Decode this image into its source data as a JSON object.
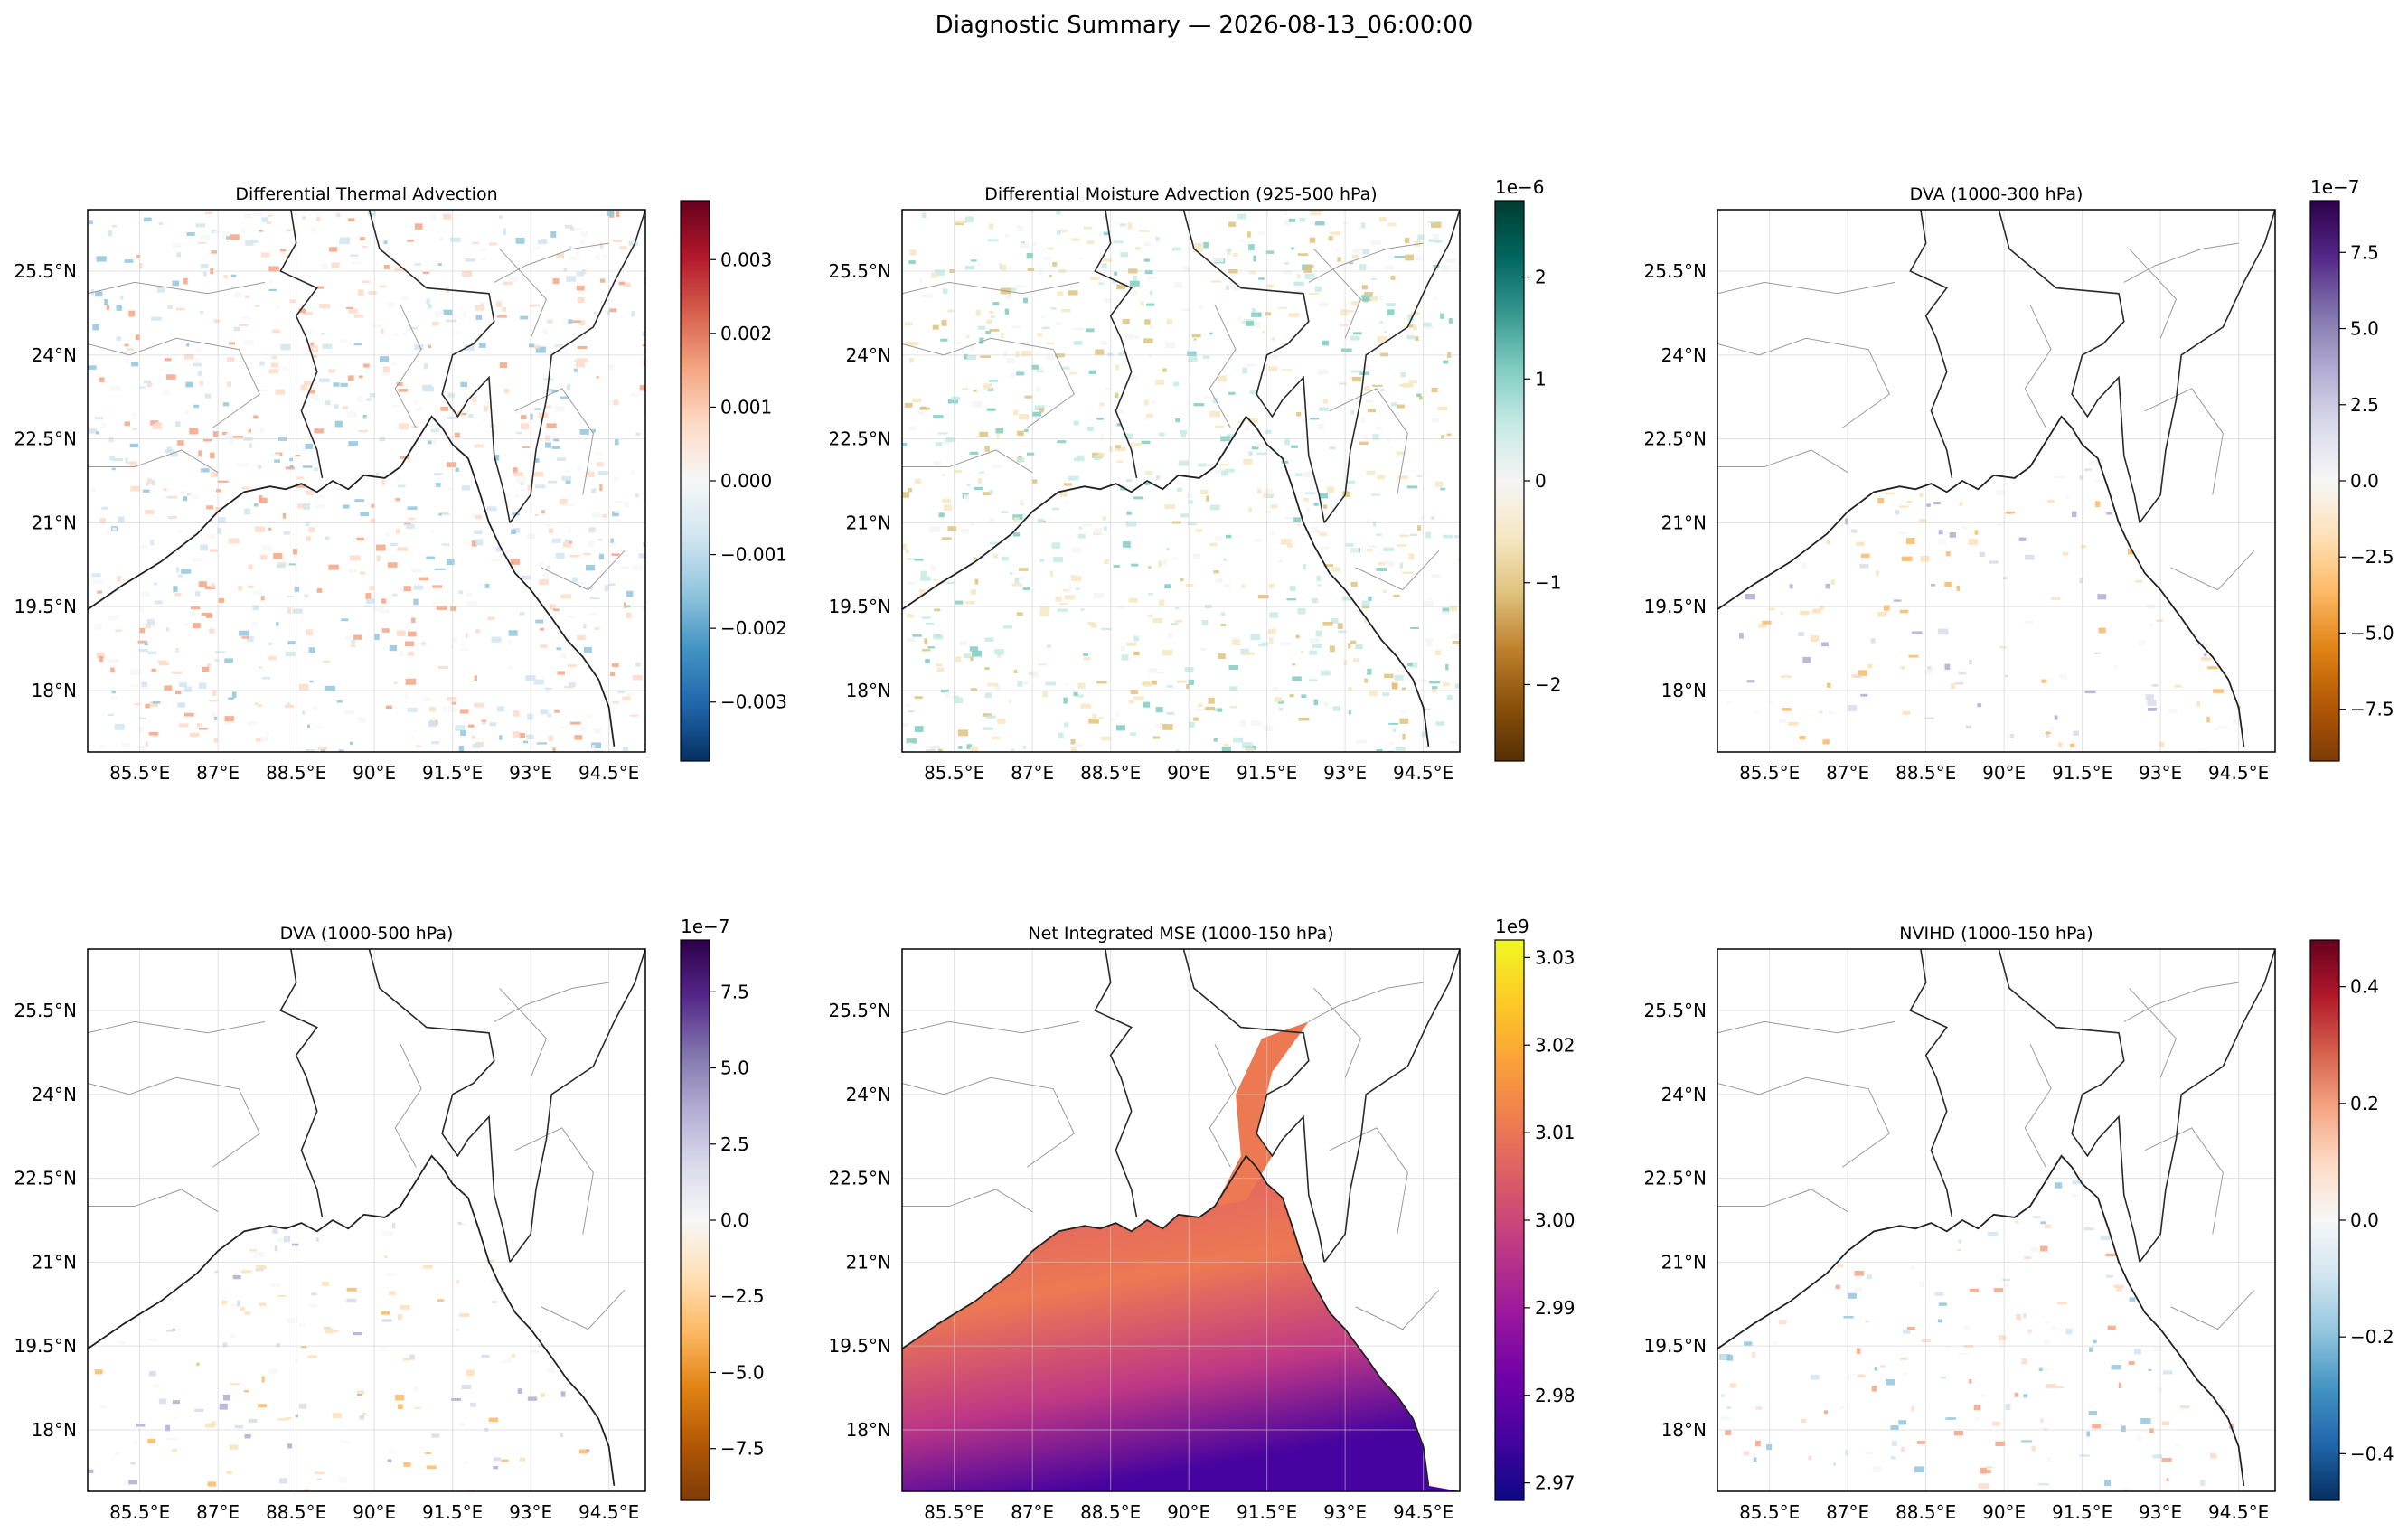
{
  "figure": {
    "title": "Diagnostic Summary — 2026-08-13_06:00:00"
  },
  "chart_data": [
    {
      "type": "heatmap",
      "title": "Differential Thermal Advection",
      "x_ticks": [
        "85.5°E",
        "87°E",
        "88.5°E",
        "90°E",
        "91.5°E",
        "93°E",
        "94.5°E"
      ],
      "y_ticks": [
        "25.5°N",
        "24°N",
        "22.5°N",
        "21°N",
        "19.5°N",
        "18°N"
      ],
      "colormap": "RdBu_r",
      "colorbar": {
        "ticks": [
          0.003,
          0.002,
          0.001,
          0.0,
          -0.001,
          -0.002,
          -0.003
        ],
        "tick_labels": [
          "0.003",
          "0.002",
          "0.001",
          "0.000",
          "−0.001",
          "−0.002",
          "−0.003"
        ],
        "vmin": -0.0038,
        "vmax": 0.0038,
        "multiplier": ""
      },
      "land_masked": false
    },
    {
      "type": "heatmap",
      "title": "Differential Moisture Advection (925-500 hPa)",
      "x_ticks": [
        "85.5°E",
        "87°E",
        "88.5°E",
        "90°E",
        "91.5°E",
        "93°E",
        "94.5°E"
      ],
      "y_ticks": [
        "25.5°N",
        "24°N",
        "22.5°N",
        "21°N",
        "19.5°N",
        "18°N"
      ],
      "colormap": "BrBG",
      "colorbar": {
        "ticks": [
          2,
          1,
          0,
          -1,
          -2
        ],
        "tick_labels": [
          "2",
          "1",
          "0",
          "−1",
          "−2"
        ],
        "vmin": -2.75,
        "vmax": 2.75,
        "multiplier": "1e−6"
      },
      "land_masked": false
    },
    {
      "type": "heatmap",
      "title": "DVA (1000-300 hPa)",
      "x_ticks": [
        "85.5°E",
        "87°E",
        "88.5°E",
        "90°E",
        "91.5°E",
        "93°E",
        "94.5°E"
      ],
      "y_ticks": [
        "25.5°N",
        "24°N",
        "22.5°N",
        "21°N",
        "19.5°N",
        "18°N"
      ],
      "colormap": "PuOr",
      "colorbar": {
        "ticks": [
          7.5,
          5.0,
          2.5,
          0.0,
          -2.5,
          -5.0,
          -7.5
        ],
        "tick_labels": [
          "7.5",
          "5.0",
          "2.5",
          "0.0",
          "−2.5",
          "−5.0",
          "−7.5"
        ],
        "vmin": -9.2,
        "vmax": 9.2,
        "multiplier": "1e−7"
      },
      "land_masked": true
    },
    {
      "type": "heatmap",
      "title": "DVA (1000-500 hPa)",
      "x_ticks": [
        "85.5°E",
        "87°E",
        "88.5°E",
        "90°E",
        "91.5°E",
        "93°E",
        "94.5°E"
      ],
      "y_ticks": [
        "25.5°N",
        "24°N",
        "22.5°N",
        "21°N",
        "19.5°N",
        "18°N"
      ],
      "colormap": "PuOr",
      "colorbar": {
        "ticks": [
          7.5,
          5.0,
          2.5,
          0.0,
          -2.5,
          -5.0,
          -7.5
        ],
        "tick_labels": [
          "7.5",
          "5.0",
          "2.5",
          "0.0",
          "−2.5",
          "−5.0",
          "−7.5"
        ],
        "vmin": -9.2,
        "vmax": 9.2,
        "multiplier": "1e−7"
      },
      "land_masked": true
    },
    {
      "type": "heatmap",
      "title": "Net Integrated MSE (1000-150 hPa)",
      "x_ticks": [
        "85.5°E",
        "87°E",
        "88.5°E",
        "90°E",
        "91.5°E",
        "93°E",
        "94.5°E"
      ],
      "y_ticks": [
        "25.5°N",
        "24°N",
        "22.5°N",
        "21°N",
        "19.5°N",
        "18°N"
      ],
      "colormap": "plasma",
      "colorbar": {
        "ticks": [
          3.03,
          3.02,
          3.01,
          3.0,
          2.99,
          2.98,
          2.97
        ],
        "tick_labels": [
          "3.03",
          "3.02",
          "3.01",
          "3.00",
          "2.99",
          "2.98",
          "2.97"
        ],
        "vmin": 2.968,
        "vmax": 3.032,
        "multiplier": "1e9"
      },
      "land_masked": true
    },
    {
      "type": "heatmap",
      "title": "NVIHD (1000-150 hPa)",
      "x_ticks": [
        "85.5°E",
        "87°E",
        "88.5°E",
        "90°E",
        "91.5°E",
        "93°E",
        "94.5°E"
      ],
      "y_ticks": [
        "25.5°N",
        "24°N",
        "22.5°N",
        "21°N",
        "19.5°N",
        "18°N"
      ],
      "colormap": "RdBu_r",
      "colorbar": {
        "ticks": [
          0.4,
          0.2,
          0.0,
          -0.2,
          -0.4
        ],
        "tick_labels": [
          "0.4",
          "0.2",
          "0.0",
          "−0.2",
          "−0.4"
        ],
        "vmin": -0.48,
        "vmax": 0.48,
        "multiplier": ""
      },
      "land_masked": true
    }
  ]
}
